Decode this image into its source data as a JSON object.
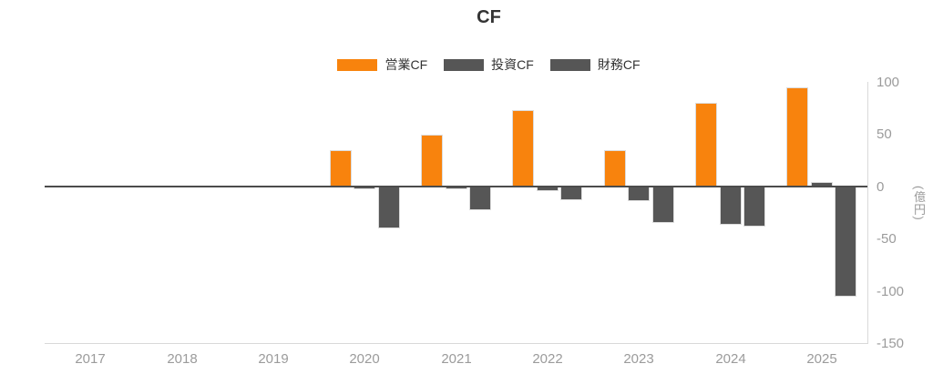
{
  "title": "CF",
  "chart_data": {
    "type": "bar",
    "title": "CF",
    "categories": [
      "2017",
      "2018",
      "2019",
      "2020",
      "2021",
      "2022",
      "2023",
      "2024",
      "2025"
    ],
    "series": [
      {
        "name": "営業CF",
        "key": "operating-cf",
        "color": "#F8830D",
        "values": [
          null,
          null,
          null,
          35,
          50,
          73,
          35,
          80,
          95
        ]
      },
      {
        "name": "投資CF",
        "key": "investing-cf",
        "color": "#565656",
        "values": [
          null,
          null,
          null,
          -3,
          -3,
          -4,
          -14,
          -37,
          4
        ]
      },
      {
        "name": "財務CF",
        "key": "financing-cf",
        "color": "#565656",
        "values": [
          null,
          null,
          null,
          -40,
          -23,
          -13,
          -35,
          -38,
          -105
        ]
      }
    ],
    "ylabel": "(億円)",
    "yticks": [
      100,
      50,
      0,
      -50,
      -100,
      -150
    ],
    "ylim": [
      -150,
      100
    ],
    "legend_position": "top-center",
    "grid": false,
    "colors": {
      "operating_cf": "#F8830D",
      "investing_cf": "#565656",
      "financing_cf": "#565656",
      "zero_line": "#4c4c4c",
      "axis_line": "#d9d9d9",
      "tick_label": "#9b9b9b",
      "title_text": "#333333",
      "legend_text": "#333333"
    }
  }
}
